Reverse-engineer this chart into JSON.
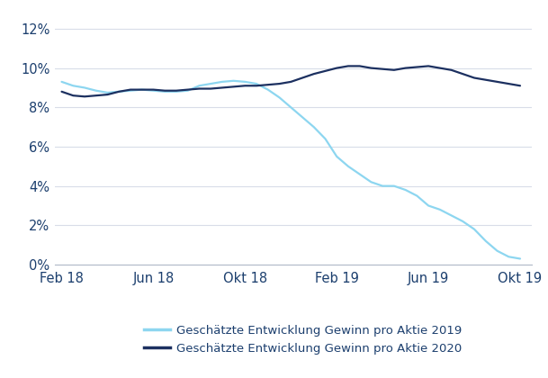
{
  "x_labels": [
    "Feb 18",
    "Jun 18",
    "Okt 18",
    "Feb 19",
    "Jun 19",
    "Okt 19"
  ],
  "x_positions": [
    0,
    4,
    8,
    12,
    16,
    20
  ],
  "series_2019": {
    "label": "Geschätzte Entwicklung Gewinn pro Aktie 2019",
    "color": "#8dd6f0",
    "linewidth": 1.6,
    "x": [
      0,
      0.5,
      1,
      1.5,
      2,
      2.5,
      3,
      3.5,
      4,
      4.5,
      5,
      5.5,
      6,
      6.5,
      7,
      7.5,
      8,
      8.5,
      9,
      9.5,
      10,
      10.5,
      11,
      11.5,
      12,
      12.5,
      13,
      13.5,
      14,
      14.5,
      15,
      15.5,
      16,
      16.5,
      17,
      17.5,
      18,
      18.5,
      19,
      19.5,
      20
    ],
    "y": [
      9.3,
      9.1,
      9.0,
      8.85,
      8.75,
      8.8,
      8.85,
      8.9,
      8.85,
      8.8,
      8.8,
      8.85,
      9.1,
      9.2,
      9.3,
      9.35,
      9.3,
      9.2,
      8.9,
      8.5,
      8.0,
      7.5,
      7.0,
      6.4,
      5.5,
      5.0,
      4.6,
      4.2,
      4.0,
      4.0,
      3.8,
      3.5,
      3.0,
      2.8,
      2.5,
      2.2,
      1.8,
      1.2,
      0.7,
      0.4,
      0.3
    ]
  },
  "series_2020": {
    "label": "Geschätzte Entwicklung Gewinn pro Aktie 2020",
    "color": "#1c3060",
    "linewidth": 1.6,
    "x": [
      0,
      0.5,
      1,
      1.5,
      2,
      2.5,
      3,
      3.5,
      4,
      4.5,
      5,
      5.5,
      6,
      6.5,
      7,
      7.5,
      8,
      8.5,
      9,
      9.5,
      10,
      10.5,
      11,
      11.5,
      12,
      12.5,
      13,
      13.5,
      14,
      14.5,
      15,
      15.5,
      16,
      16.5,
      17,
      17.5,
      18,
      18.5,
      19,
      19.5,
      20
    ],
    "y": [
      8.8,
      8.6,
      8.55,
      8.6,
      8.65,
      8.8,
      8.9,
      8.9,
      8.9,
      8.85,
      8.85,
      8.9,
      8.95,
      8.95,
      9.0,
      9.05,
      9.1,
      9.1,
      9.15,
      9.2,
      9.3,
      9.5,
      9.7,
      9.85,
      10.0,
      10.1,
      10.1,
      10.0,
      9.95,
      9.9,
      10.0,
      10.05,
      10.1,
      10.0,
      9.9,
      9.7,
      9.5,
      9.4,
      9.3,
      9.2,
      9.1
    ]
  },
  "ylim": [
    0,
    12.5
  ],
  "yticks": [
    0,
    2,
    4,
    6,
    8,
    10,
    12
  ],
  "ytick_labels": [
    "0%",
    "2%",
    "4%",
    "6%",
    "8%",
    "10%",
    "12%"
  ],
  "background_color": "#ffffff",
  "axis_color": "#b0b8c8",
  "text_color": "#1c3f6e",
  "grid_color": "#d8dde8",
  "legend_fontsize": 9.5,
  "tick_fontsize": 10.5
}
